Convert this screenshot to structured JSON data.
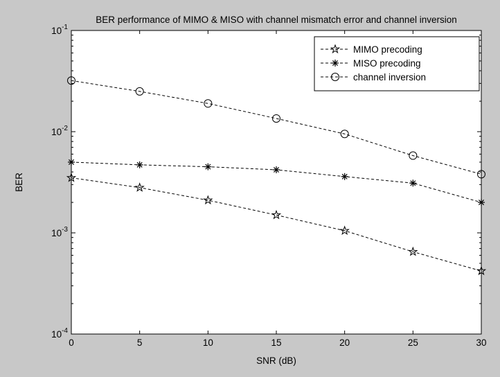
{
  "figure": {
    "background": "#c8c8c8",
    "axes_background": "#ffffff",
    "line_color": "#000000"
  },
  "chart_data": {
    "type": "line",
    "title": "BER performance of MIMO & MISO with channel mismatch error and channel inversion",
    "xlabel": "SNR (dB)",
    "ylabel": "BER",
    "xlim": [
      0,
      30
    ],
    "ylim": [
      0.0001,
      0.1
    ],
    "yscale": "log",
    "grid": false,
    "legend_position": "top-right",
    "x_ticks": [
      "0",
      "5",
      "10",
      "15",
      "20",
      "25",
      "30"
    ],
    "y_ticks": [
      {
        "base": "10",
        "exp": "-4",
        "value": 0.0001
      },
      {
        "base": "10",
        "exp": "-3",
        "value": 0.001
      },
      {
        "base": "10",
        "exp": "-2",
        "value": 0.01
      },
      {
        "base": "10",
        "exp": "-1",
        "value": 0.1
      }
    ],
    "x": [
      0,
      5,
      10,
      15,
      20,
      25,
      30
    ],
    "series": [
      {
        "name": "MIMO precoding",
        "marker": "pentagram",
        "line": "dashed",
        "values": [
          0.0035,
          0.0028,
          0.0021,
          0.0015,
          0.00105,
          0.00065,
          0.00042
        ]
      },
      {
        "name": "MISO precoding",
        "marker": "asterisk",
        "line": "dashed",
        "values": [
          0.005,
          0.0047,
          0.0045,
          0.0042,
          0.0036,
          0.0031,
          0.002
        ]
      },
      {
        "name": "channel inversion",
        "marker": "circle",
        "line": "dashed",
        "values": [
          0.032,
          0.025,
          0.019,
          0.0135,
          0.0095,
          0.0058,
          0.0038
        ]
      }
    ]
  }
}
